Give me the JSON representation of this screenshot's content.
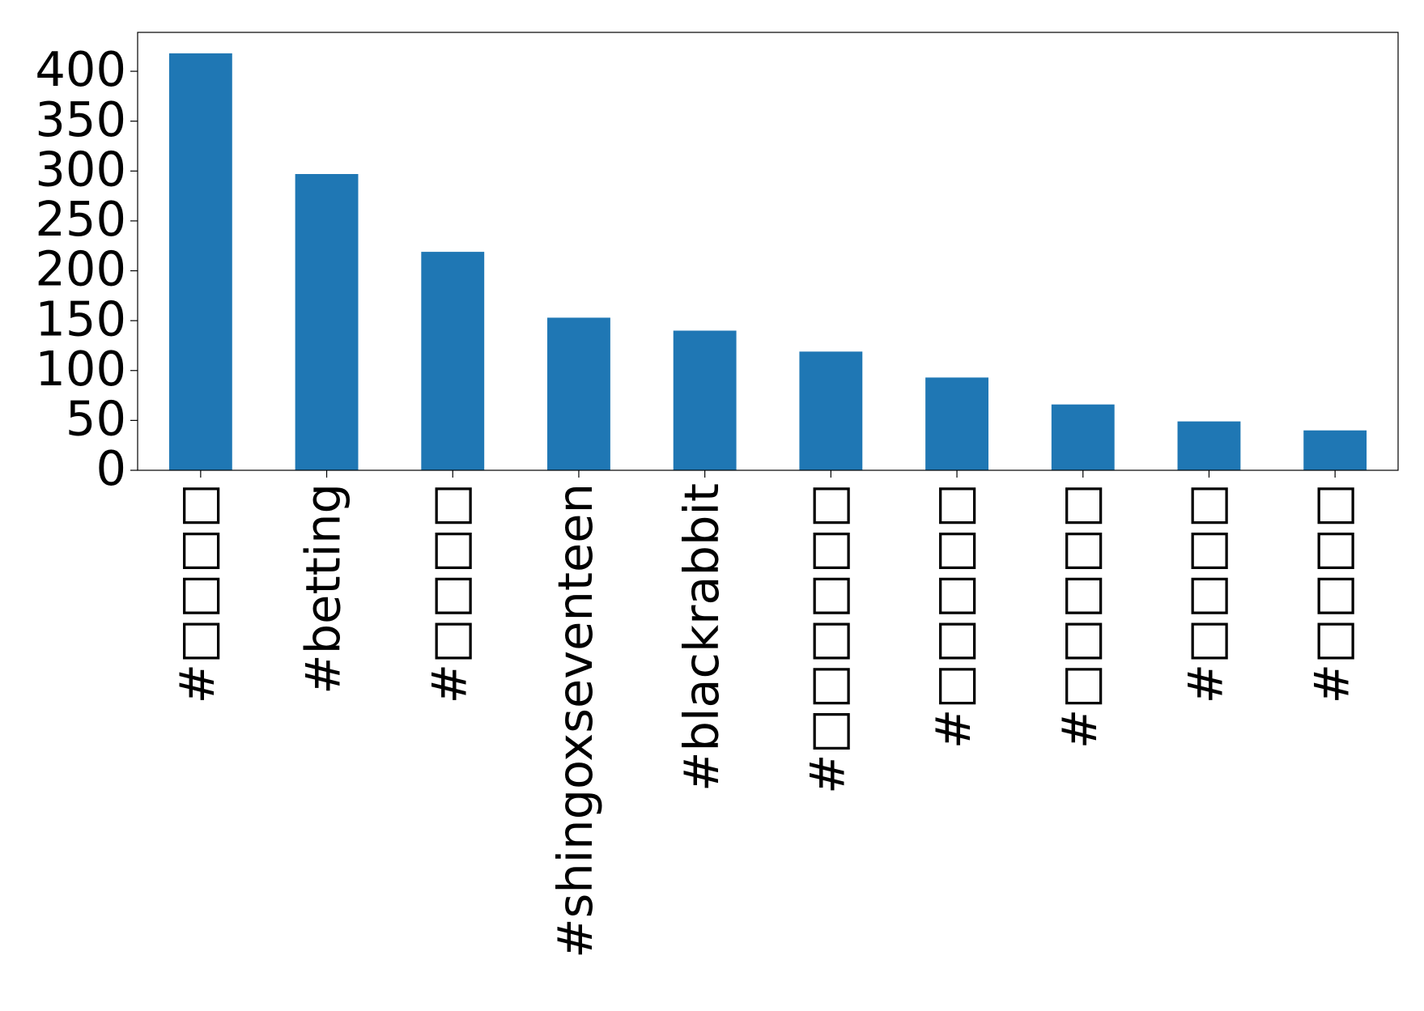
{
  "chart_data": {
    "type": "bar",
    "categories": [
      "#□□□□",
      "#betting",
      "#□□□□",
      "#shingoxseventeen",
      "#blackrabbit",
      "#□□□□□□",
      "#□□□□□",
      "#□□□□□",
      "#□□□□",
      "#□□□□"
    ],
    "values": [
      418,
      297,
      219,
      153,
      140,
      119,
      93,
      66,
      49,
      40
    ],
    "color": "#1f77b4",
    "ylim": [
      0,
      439
    ],
    "yticks": [
      0,
      50,
      100,
      150,
      200,
      250,
      300,
      350,
      400
    ],
    "grid": false
  }
}
